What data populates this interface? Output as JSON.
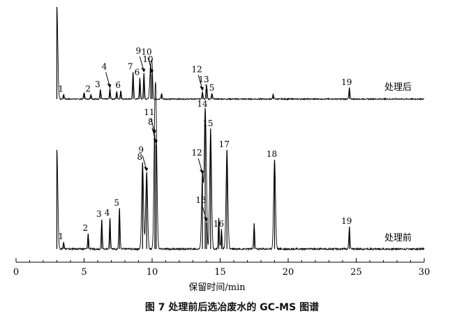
{
  "figure_caption": "图 7   处理前后选冶废水的 GC-MS 图谱",
  "chart_data": {
    "type": "line",
    "xlabel": "保留时间/min",
    "ylabel": "",
    "xlim": [
      0,
      30
    ],
    "x_ticks": [
      0,
      5,
      10,
      15,
      20,
      25,
      30
    ],
    "grid": false,
    "color": "#000000",
    "series": [
      {
        "name": "处理后",
        "peaks": [
          {
            "x": 3.0,
            "h": 1.0
          },
          {
            "x": 3.5,
            "h": 0.05,
            "label": "1"
          },
          {
            "x": 5.0,
            "h": 0.07
          },
          {
            "x": 5.5,
            "h": 0.05,
            "label": "2"
          },
          {
            "x": 6.2,
            "h": 0.1,
            "label": "3"
          },
          {
            "x": 6.9,
            "h": 0.11,
            "label": "4",
            "arrow": true
          },
          {
            "x": 7.4,
            "h": 0.08
          },
          {
            "x": 7.7,
            "h": 0.09,
            "label": "6"
          },
          {
            "x": 8.6,
            "h": 0.29,
            "label": "7"
          },
          {
            "x": 9.1,
            "h": 0.23,
            "label": "6"
          },
          {
            "x": 9.4,
            "h": 0.28,
            "label": "9",
            "arrow": true
          },
          {
            "x": 9.9,
            "h": 0.37,
            "label": "10"
          },
          {
            "x": 10.0,
            "h": 0.27,
            "label": "10",
            "arrow": true
          },
          {
            "x": 10.7,
            "h": 0.06
          },
          {
            "x": 13.7,
            "h": 0.08,
            "label": "12",
            "arrow": true
          },
          {
            "x": 14.0,
            "h": 0.15,
            "label": "13"
          },
          {
            "x": 14.4,
            "h": 0.06,
            "label": "15"
          },
          {
            "x": 18.9,
            "h": 0.05
          },
          {
            "x": 24.5,
            "h": 0.12,
            "label": "19"
          }
        ]
      },
      {
        "name": "处理前",
        "peaks": [
          {
            "x": 3.0,
            "h": 0.71
          },
          {
            "x": 3.5,
            "h": 0.05,
            "label": "1"
          },
          {
            "x": 5.3,
            "h": 0.11,
            "label": "2"
          },
          {
            "x": 6.3,
            "h": 0.21,
            "label": "3"
          },
          {
            "x": 6.9,
            "h": 0.22,
            "label": "4"
          },
          {
            "x": 7.6,
            "h": 0.29,
            "label": "5"
          },
          {
            "x": 9.3,
            "h": 0.62,
            "label": "8"
          },
          {
            "x": 9.6,
            "h": 0.55,
            "label": "9",
            "arrow": true
          },
          {
            "x": 10.2,
            "h": 0.82,
            "label": "11",
            "arrow": true
          },
          {
            "x": 10.3,
            "h": 0.75,
            "label": "8",
            "arrow": true
          },
          {
            "x": 13.7,
            "h": 0.53,
            "label": "12",
            "arrow": true
          },
          {
            "x": 14.0,
            "h": 0.19,
            "label": "13",
            "arrow": true
          },
          {
            "x": 13.9,
            "h": 1.0,
            "label": "14"
          },
          {
            "x": 14.3,
            "h": 0.86,
            "label": "15"
          },
          {
            "x": 14.9,
            "h": 0.22
          },
          {
            "x": 15.1,
            "h": 0.14,
            "label": "16"
          },
          {
            "x": 15.5,
            "h": 0.71,
            "label": "17"
          },
          {
            "x": 17.5,
            "h": 0.18
          },
          {
            "x": 19.0,
            "h": 0.64,
            "label": "18"
          },
          {
            "x": 24.5,
            "h": 0.16,
            "label": "19"
          }
        ]
      }
    ]
  }
}
